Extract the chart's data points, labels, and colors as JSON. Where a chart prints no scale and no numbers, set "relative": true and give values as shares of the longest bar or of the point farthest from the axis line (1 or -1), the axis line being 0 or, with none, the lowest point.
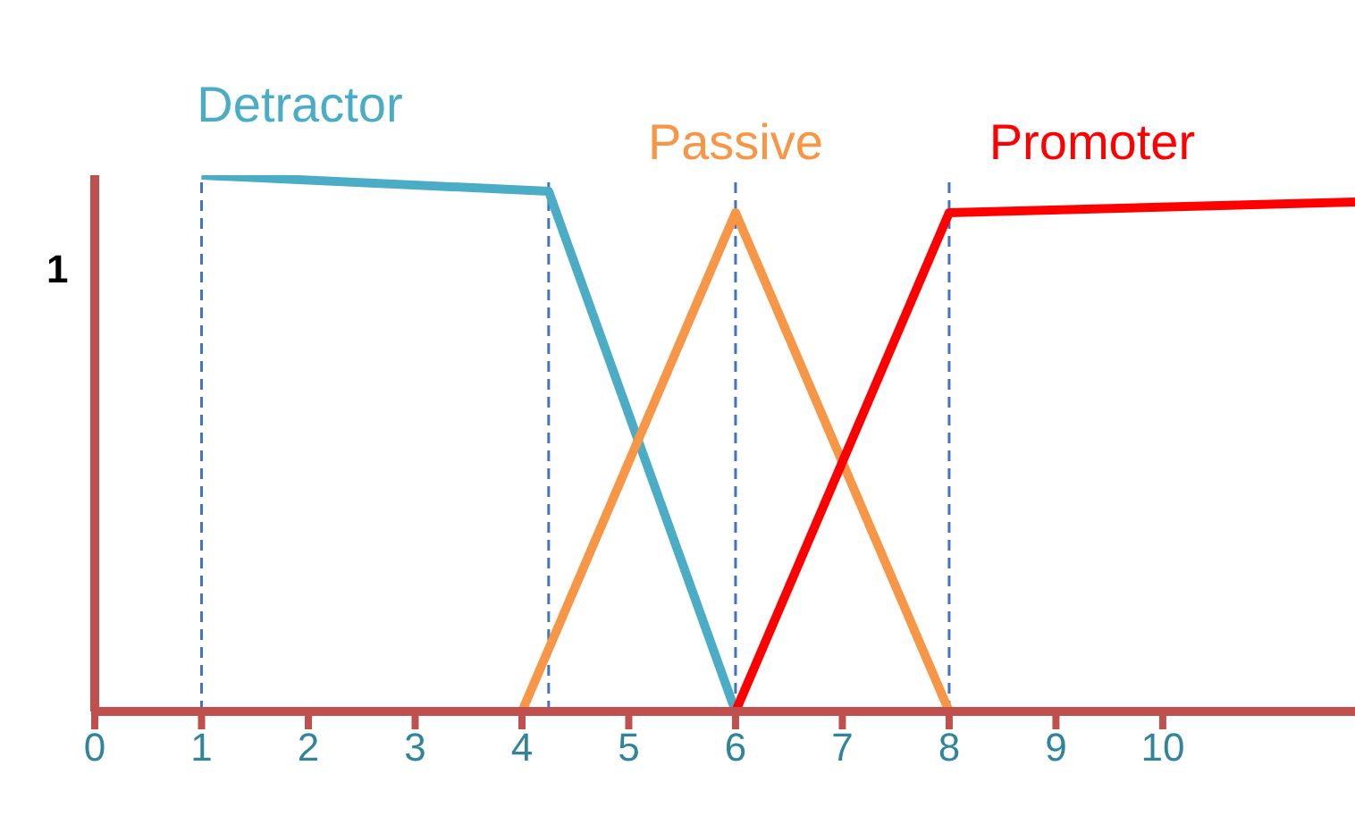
{
  "chart_data": {
    "type": "line",
    "relative": true,
    "xlim": [
      0,
      11.8
    ],
    "xticks": [
      0,
      1,
      2,
      3,
      4,
      5,
      6,
      7,
      8,
      9,
      10
    ],
    "grid": false,
    "legend": false,
    "marker": "none",
    "line_style": "solid",
    "annotations": [
      "1"
    ],
    "series": [
      {
        "name": "Detractor",
        "color": "#4bacc6",
        "x": [
          1,
          4.25,
          6
        ],
        "values": [
          1,
          0.97,
          0
        ]
      },
      {
        "name": "Passive",
        "color": "#f79646",
        "x": [
          4,
          6,
          8
        ],
        "values": [
          0,
          0.93,
          0
        ]
      },
      {
        "name": "Promoter",
        "color": "#ff0000",
        "x": [
          6,
          8,
          11.8
        ],
        "values": [
          0,
          0.93,
          0.95
        ]
      }
    ],
    "ref_lines": [
      {
        "axis": "x",
        "value": 1,
        "color": "#4472c4",
        "line_style": "dashed"
      },
      {
        "axis": "x",
        "value": 4.25,
        "color": "#4472c4",
        "line_style": "dashed"
      },
      {
        "axis": "x",
        "value": 6,
        "color": "#4472c4",
        "line_style": "dashed"
      },
      {
        "axis": "x",
        "value": 8,
        "color": "#4472c4",
        "line_style": "dashed"
      }
    ]
  }
}
